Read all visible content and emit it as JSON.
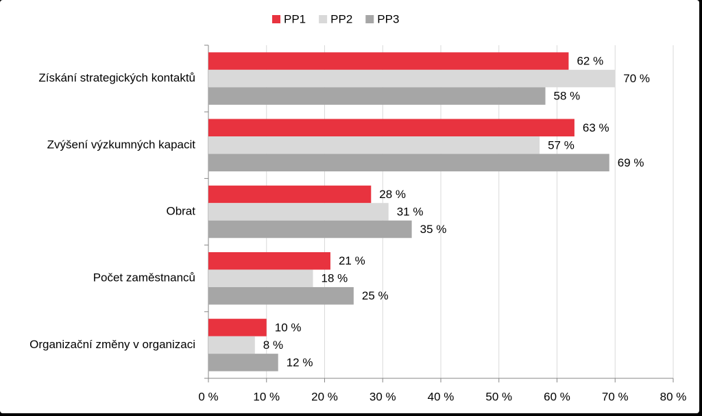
{
  "chart_data": {
    "type": "hbar",
    "categories": [
      "Získání strategických kontaktů",
      "Zvýšení výzkumných kapacit",
      "Obrat",
      "Počet zaměstnanců",
      "Organizační změny v organizaci"
    ],
    "series": [
      {
        "name": "PP1",
        "color": "#e8333f",
        "values": [
          62,
          63,
          28,
          21,
          10
        ],
        "value_labels": [
          "62 %",
          "63 %",
          "28 %",
          "21 %",
          "10 %"
        ]
      },
      {
        "name": "PP2",
        "color": "#d9d9d9",
        "values": [
          70,
          57,
          31,
          18,
          8
        ],
        "value_labels": [
          "70 %",
          "57 %",
          "31 %",
          "18 %",
          "8 %"
        ]
      },
      {
        "name": "PP3",
        "color": "#a6a6a6",
        "values": [
          58,
          69,
          35,
          25,
          12
        ],
        "value_labels": [
          "58 %",
          "69 %",
          "35 %",
          "25 %",
          "12 %"
        ]
      }
    ],
    "xlim": [
      0,
      80
    ],
    "xticks": [
      {
        "value": 0,
        "label": "0 %"
      },
      {
        "value": 10,
        "label": "10 %"
      },
      {
        "value": 20,
        "label": "20 %"
      },
      {
        "value": 30,
        "label": "30 %"
      },
      {
        "value": 40,
        "label": "40 %"
      },
      {
        "value": 50,
        "label": "50 %"
      },
      {
        "value": 60,
        "label": "60 %"
      },
      {
        "value": 70,
        "label": "70 %"
      },
      {
        "value": 80,
        "label": "80 %"
      }
    ],
    "grid": true,
    "legend": "top"
  }
}
